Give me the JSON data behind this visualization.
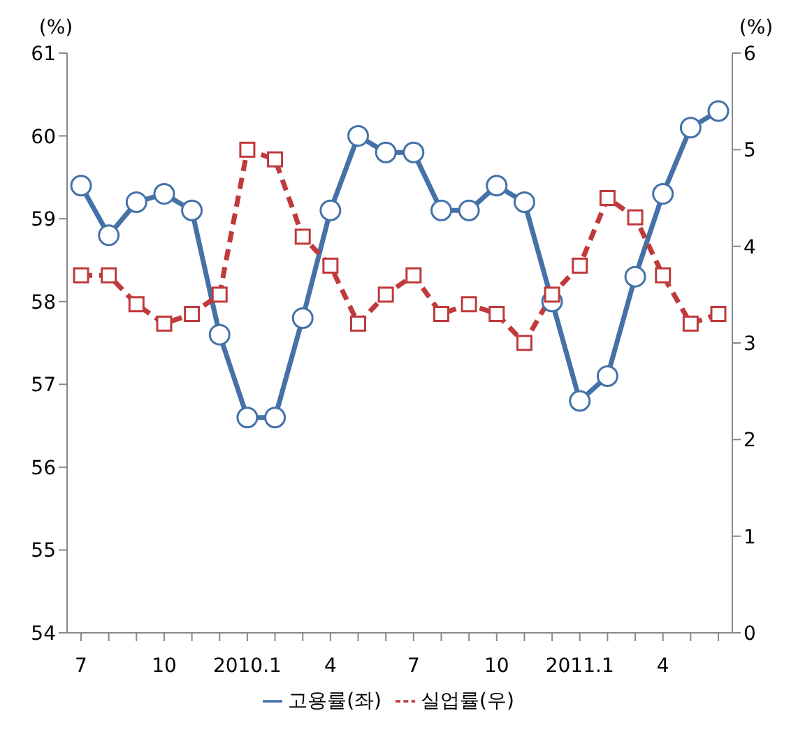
{
  "chart_data": {
    "type": "line",
    "ylabel": "(%)",
    "y2label": "(%)",
    "categories": [
      "7",
      null,
      null,
      "10",
      null,
      null,
      "2010.1",
      null,
      null,
      "4",
      null,
      null,
      "7",
      null,
      null,
      "10",
      null,
      null,
      "2011.1",
      null,
      null,
      "4",
      null,
      null
    ],
    "series": [
      {
        "name": "고용률(좌)",
        "color": "#4472a8",
        "marker": "circle",
        "line_style": "solid",
        "values": [
          59.4,
          58.8,
          59.2,
          59.3,
          59.1,
          57.6,
          56.6,
          56.6,
          57.8,
          59.1,
          60.0,
          59.8,
          59.8,
          59.1,
          59.1,
          59.4,
          59.2,
          58.0,
          56.8,
          57.1,
          58.3,
          59.3,
          60.1,
          60.3
        ]
      },
      {
        "name": "실업률(우)",
        "color": "#c0393b",
        "marker": "square",
        "line_style": "dashed",
        "axis": "y2",
        "values": [
          3.7,
          3.7,
          3.4,
          3.2,
          3.3,
          3.5,
          5.0,
          4.9,
          4.1,
          3.8,
          3.2,
          3.5,
          3.7,
          3.3,
          3.4,
          3.3,
          3.0,
          3.5,
          3.8,
          4.5,
          4.3,
          3.7,
          3.2,
          3.3
        ]
      }
    ],
    "ylim": [
      54,
      61
    ],
    "yticks": [
      54,
      55,
      56,
      57,
      58,
      59,
      60,
      61
    ],
    "y2lim": [
      0,
      6
    ],
    "y2ticks": [
      0,
      1,
      2,
      3,
      4,
      5,
      6
    ],
    "grid": false,
    "legend": "bottom"
  }
}
